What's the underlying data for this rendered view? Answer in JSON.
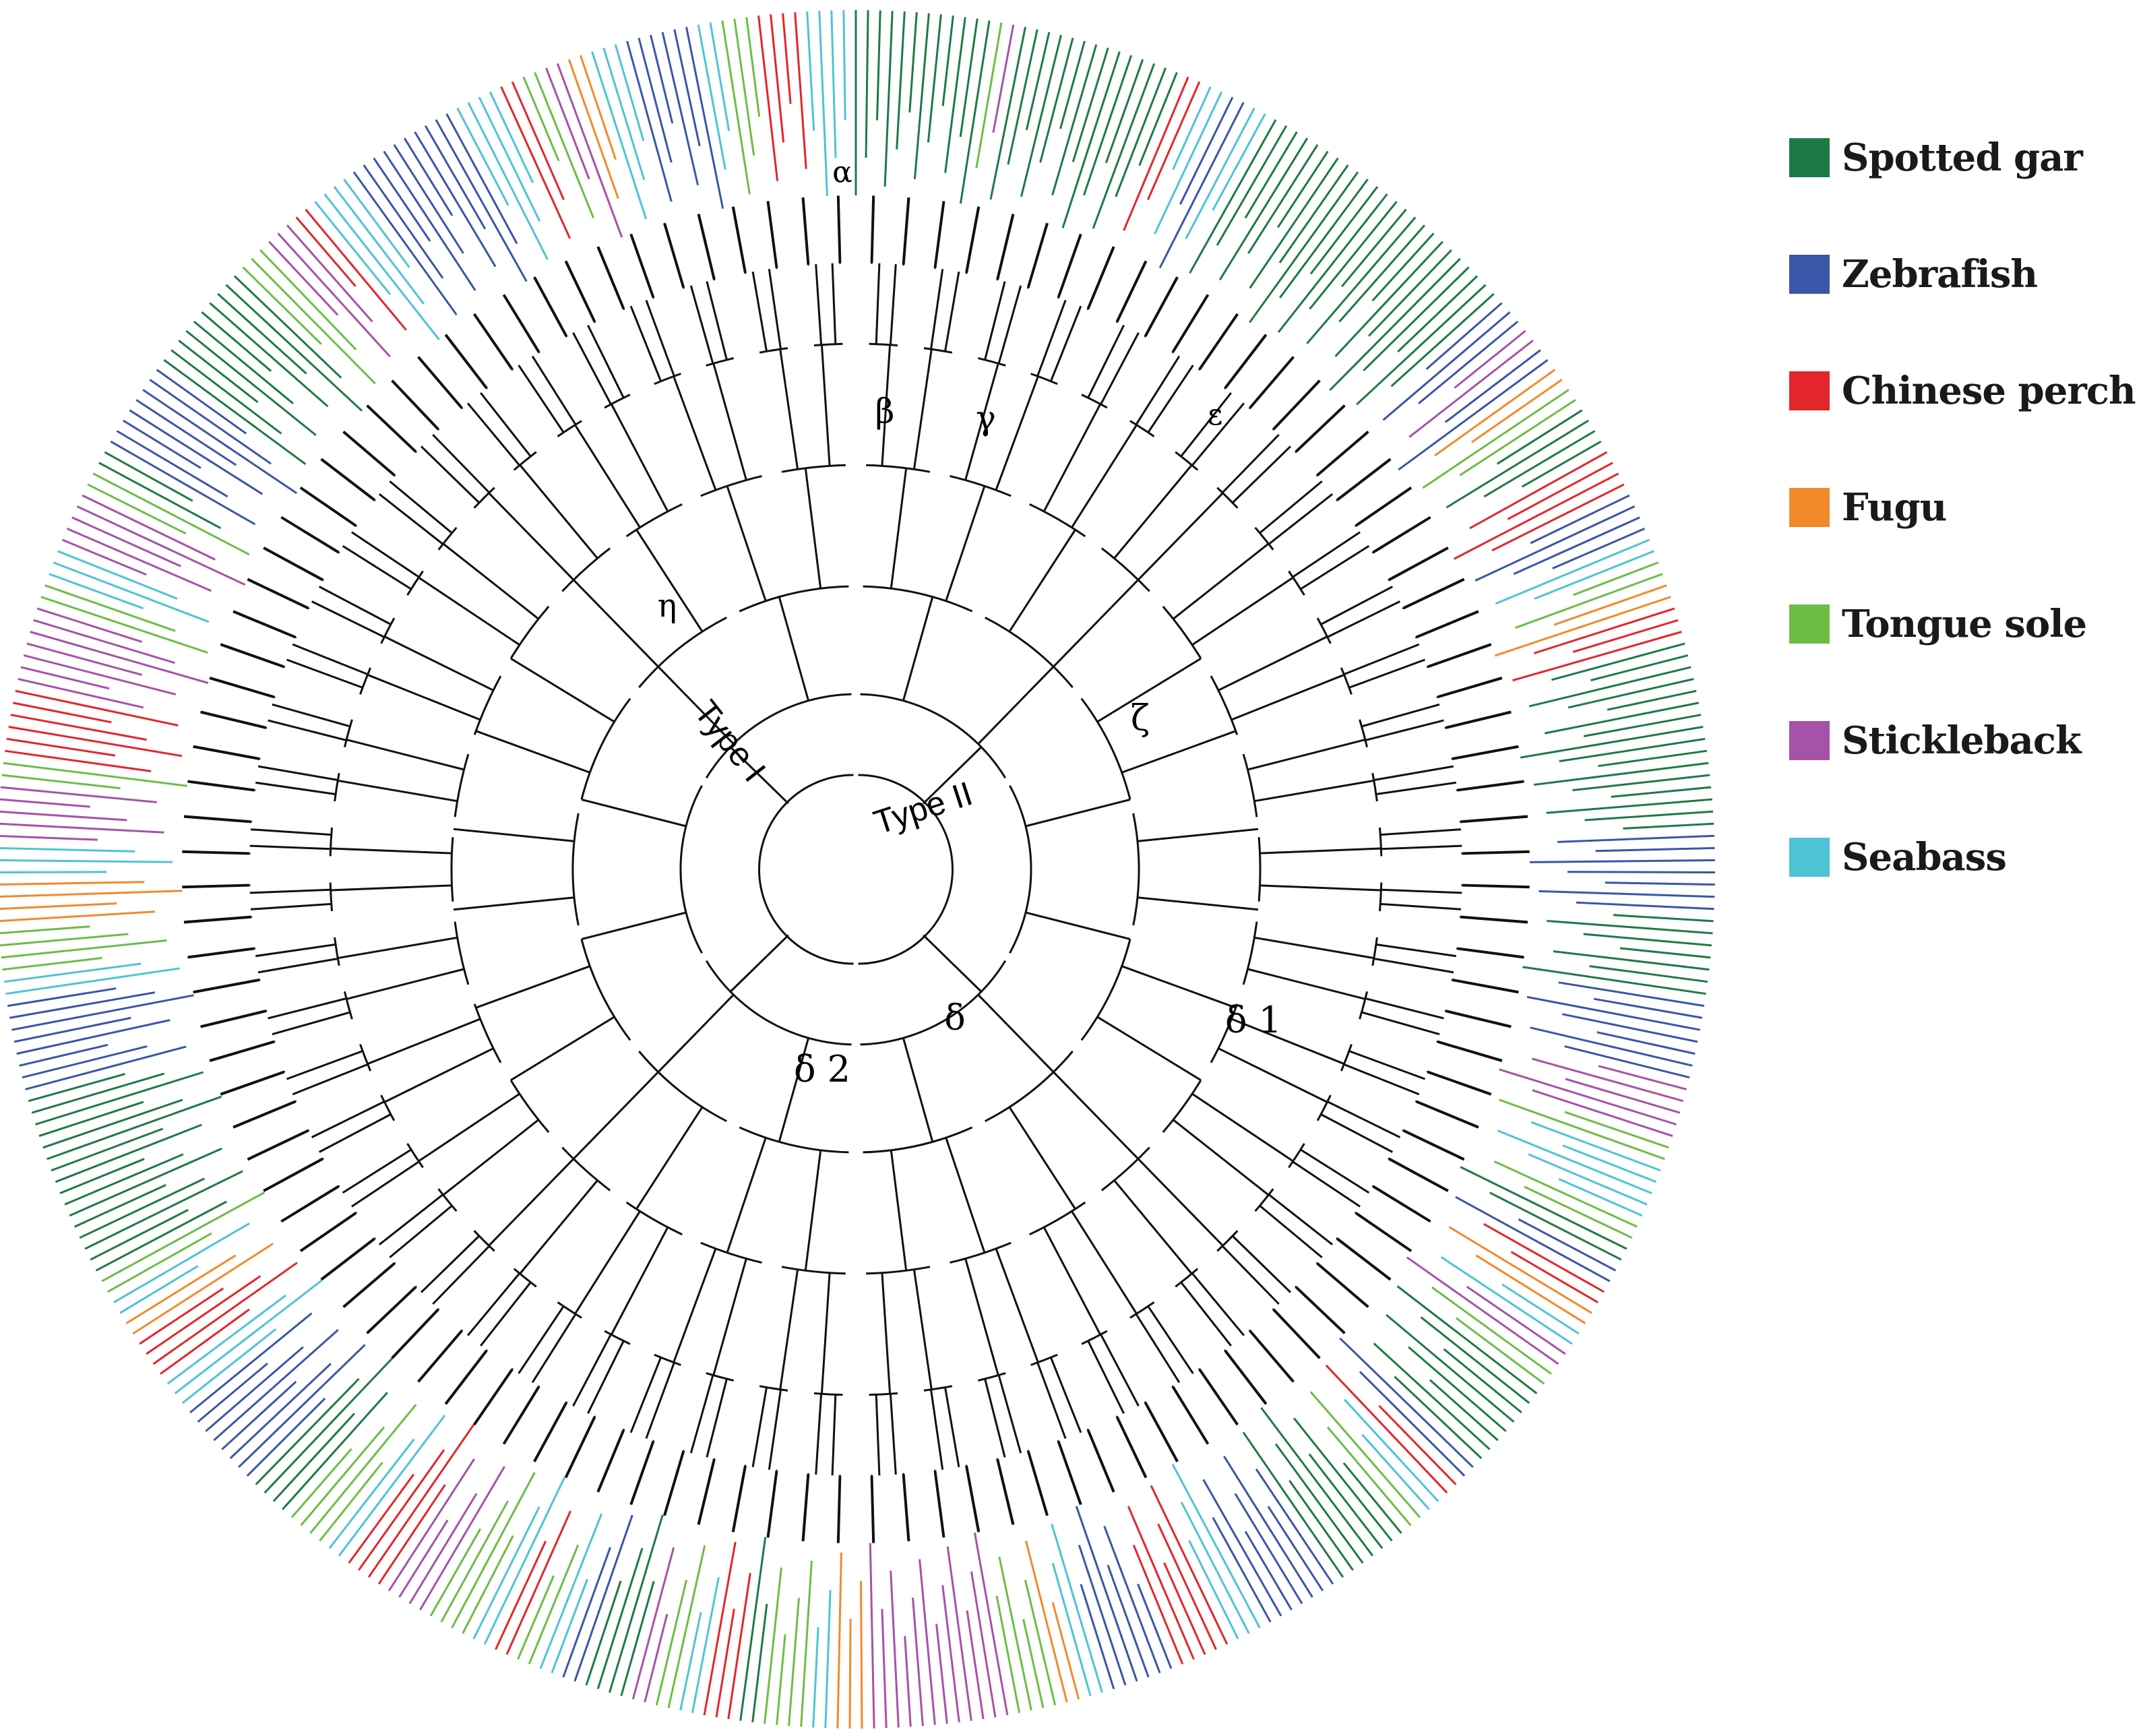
{
  "figure": {
    "type_labels": {
      "type_1": "Type I",
      "type_2": "Type II"
    },
    "clade_labels": {
      "alpha": "α",
      "beta": "β",
      "gamma": "γ",
      "epsilon": "ε",
      "zeta": "ζ",
      "eta": "η",
      "delta": "δ",
      "delta_1": "δ 1",
      "delta_2": "δ 2"
    },
    "legend": [
      {
        "label": "Spotted gar",
        "color": "#1e7a45"
      },
      {
        "label": "Zebrafish",
        "color": "#3a56a8"
      },
      {
        "label": "Chinese perch",
        "color": "#e3262b"
      },
      {
        "label": "Fugu",
        "color": "#f28a2b"
      },
      {
        "label": "Tongue sole",
        "color": "#6cbd45"
      },
      {
        "label": "Stickleback",
        "color": "#a652a8"
      },
      {
        "label": "Seabass",
        "color": "#4ec3d6"
      }
    ]
  }
}
